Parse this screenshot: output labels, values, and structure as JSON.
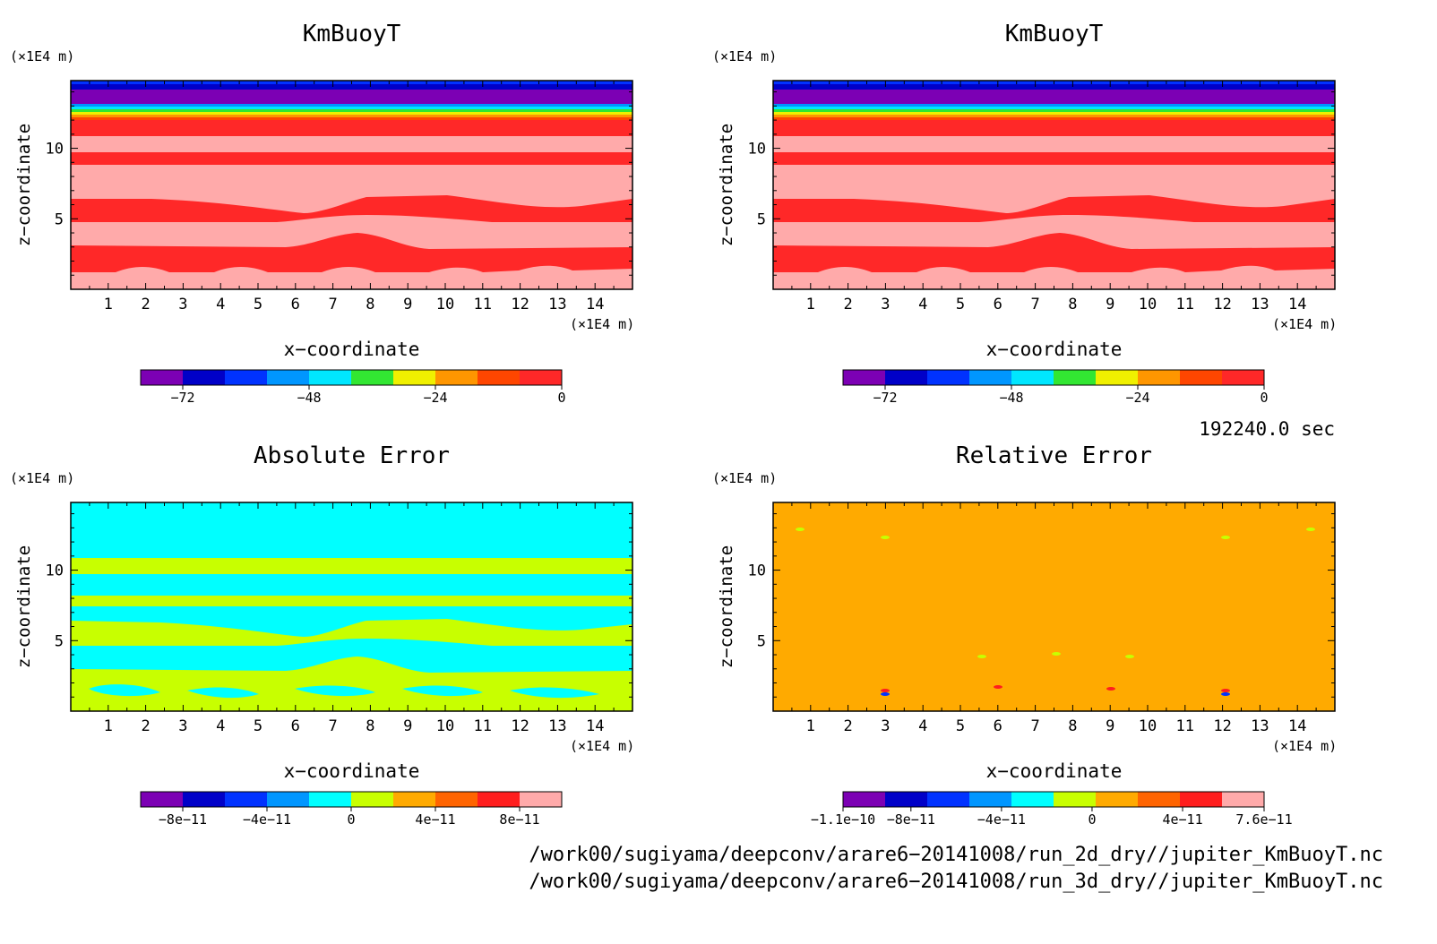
{
  "panels": [
    {
      "title": "KmBuoyT",
      "x_unit": "(×1E4 m)",
      "z_unit": "(×1E4 m)",
      "x_label": "x−coordinate",
      "z_label": "z−coordinate",
      "field": "kmbuoyt",
      "colorbar": {
        "colors": [
          "#7c00b4",
          "#0000c8",
          "#0032ff",
          "#0096ff",
          "#00e6ff",
          "#32e632",
          "#f0f000",
          "#ff9600",
          "#ff4600",
          "#ff2828"
        ],
        "labels": [
          "−72",
          "−48",
          "−24",
          "0"
        ]
      }
    },
    {
      "title": "KmBuoyT",
      "x_unit": "(×1E4 m)",
      "z_unit": "(×1E4 m)",
      "x_label": "x−coordinate",
      "z_label": "z−coordinate",
      "field": "kmbuoyt",
      "colorbar": {
        "colors": [
          "#7c00b4",
          "#0000c8",
          "#0032ff",
          "#0096ff",
          "#00e6ff",
          "#32e632",
          "#f0f000",
          "#ff9600",
          "#ff4600",
          "#ff2828"
        ],
        "labels": [
          "−72",
          "−48",
          "−24",
          "0"
        ]
      }
    },
    {
      "title": "Absolute Error",
      "x_unit": "(×1E4 m)",
      "z_unit": "(×1E4 m)",
      "x_label": "x−coordinate",
      "z_label": "z−coordinate",
      "field": "abs_error",
      "colorbar": {
        "colors": [
          "#7c00b4",
          "#0000c8",
          "#0032ff",
          "#0096ff",
          "#00ffff",
          "#c8ff00",
          "#ffaa00",
          "#ff6400",
          "#ff1e1e",
          "#ffaaaa"
        ],
        "labels": [
          "−8e−11",
          "−4e−11",
          "0",
          "4e−11",
          "8e−11"
        ]
      }
    },
    {
      "title": "Relative Error",
      "x_unit": "(×1E4 m)",
      "z_unit": "(×1E4 m)",
      "x_label": "x−coordinate",
      "z_label": "z−coordinate",
      "field": "rel_error",
      "colorbar": {
        "colors": [
          "#7c00b4",
          "#0000c8",
          "#0032ff",
          "#0096ff",
          "#00ffff",
          "#c8ff00",
          "#ffaa00",
          "#ff6400",
          "#ff1e1e",
          "#ffaaaa"
        ],
        "labels": [
          "−1.1e−10",
          "−8e−11",
          "−4e−11",
          "0",
          "4e−11",
          "7.6e−11"
        ]
      }
    }
  ],
  "time_label": "192240.0 sec",
  "footer": {
    "line1": "/work00/sugiyama/deepconv/arare6−20141008/run_2d_dry//jupiter_KmBuoyT.nc",
    "line2": "/work00/sugiyama/deepconv/arare6−20141008/run_3d_dry//jupiter_KmBuoyT.nc"
  },
  "chart_data": [
    {
      "type": "heatmap",
      "title": "KmBuoyT",
      "xlabel": "x−coordinate",
      "ylabel": "z−coordinate",
      "x_unit": "(×1E4 m)",
      "y_unit": "(×1E4 m)",
      "xlim": [
        0,
        15
      ],
      "ylim": [
        0,
        14.8
      ],
      "xticks": [
        1,
        2,
        3,
        4,
        5,
        6,
        7,
        8,
        9,
        10,
        11,
        12,
        13,
        14
      ],
      "yticks": [
        5,
        10
      ],
      "colorbar_ticks": [
        -72,
        -48,
        -24,
        0
      ],
      "colorbar_range": [
        -80,
        0
      ]
    },
    {
      "type": "heatmap",
      "title": "KmBuoyT",
      "xlabel": "x−coordinate",
      "ylabel": "z−coordinate",
      "x_unit": "(×1E4 m)",
      "y_unit": "(×1E4 m)",
      "xlim": [
        0,
        15
      ],
      "ylim": [
        0,
        14.8
      ],
      "xticks": [
        1,
        2,
        3,
        4,
        5,
        6,
        7,
        8,
        9,
        10,
        11,
        12,
        13,
        14
      ],
      "yticks": [
        5,
        10
      ],
      "colorbar_ticks": [
        -72,
        -48,
        -24,
        0
      ],
      "colorbar_range": [
        -80,
        0
      ]
    },
    {
      "type": "heatmap",
      "title": "Absolute Error",
      "xlabel": "x−coordinate",
      "ylabel": "z−coordinate",
      "x_unit": "(×1E4 m)",
      "y_unit": "(×1E4 m)",
      "xlim": [
        0,
        15
      ],
      "ylim": [
        0,
        14.8
      ],
      "xticks": [
        1,
        2,
        3,
        4,
        5,
        6,
        7,
        8,
        9,
        10,
        11,
        12,
        13,
        14
      ],
      "yticks": [
        5,
        10
      ],
      "colorbar_ticks": [
        -8e-11,
        -4e-11,
        0,
        4e-11,
        8e-11
      ],
      "colorbar_range": [
        -1e-10,
        1e-10
      ]
    },
    {
      "type": "heatmap",
      "title": "Relative Error",
      "xlabel": "x−coordinate",
      "ylabel": "z−coordinate",
      "x_unit": "(×1E4 m)",
      "y_unit": "(×1E4 m)",
      "xlim": [
        0,
        15
      ],
      "ylim": [
        0,
        14.8
      ],
      "xticks": [
        1,
        2,
        3,
        4,
        5,
        6,
        7,
        8,
        9,
        10,
        11,
        12,
        13,
        14
      ],
      "yticks": [
        5,
        10
      ],
      "colorbar_ticks": [
        -1.1e-10,
        -8e-11,
        -4e-11,
        0,
        4e-11,
        7.6e-11
      ],
      "colorbar_range": [
        -1.1e-10,
        7.6e-11
      ]
    }
  ]
}
